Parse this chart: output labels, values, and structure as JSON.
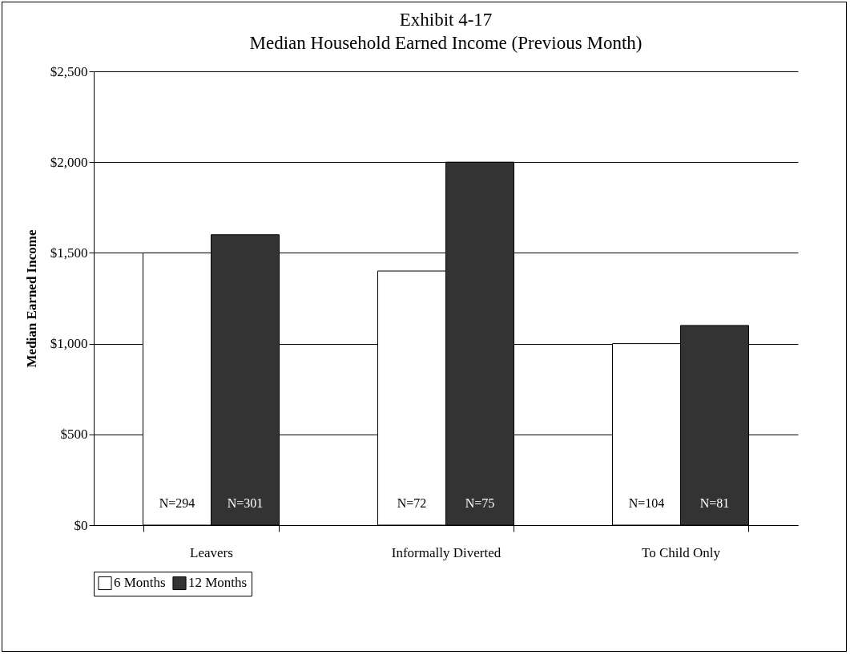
{
  "chart_data": {
    "type": "bar",
    "title": "Exhibit 4-17",
    "subtitle": "Median Household Earned Income (Previous Month)",
    "ylabel": "Median Earned Income",
    "categories": [
      "Leavers",
      "Informally Diverted",
      "To Child Only"
    ],
    "series": [
      {
        "name": "6 Months",
        "color": "#ffffff",
        "values": [
          1500,
          1400,
          1000
        ]
      },
      {
        "name": "12 Months",
        "color": "#333333",
        "values": [
          1600,
          2000,
          1100
        ]
      }
    ],
    "annotations": [
      {
        "text": "N=294",
        "x": "Leavers",
        "y": 120
      },
      {
        "text": "N=301",
        "x": "Leavers",
        "y": 120
      },
      {
        "text": "N=72",
        "x": "Informally Diverted",
        "y": 120
      },
      {
        "text": "N=75",
        "x": "Informally Diverted",
        "y": 120
      },
      {
        "text": "N=104",
        "x": "To Child Only",
        "y": 120
      },
      {
        "text": "N=81",
        "x": "To Child Only",
        "y": 120
      }
    ],
    "ylim": [
      0,
      2500
    ],
    "yticks": [
      {
        "value": 0,
        "label": "$0"
      },
      {
        "value": 500,
        "label": "$500"
      },
      {
        "value": 1000,
        "label": "$1,000"
      },
      {
        "value": 1500,
        "label": "$1,500"
      },
      {
        "value": 2000,
        "label": "$2,000"
      },
      {
        "value": 2500,
        "label": "$2,500"
      }
    ],
    "grid": "y",
    "legend": "bottom"
  }
}
